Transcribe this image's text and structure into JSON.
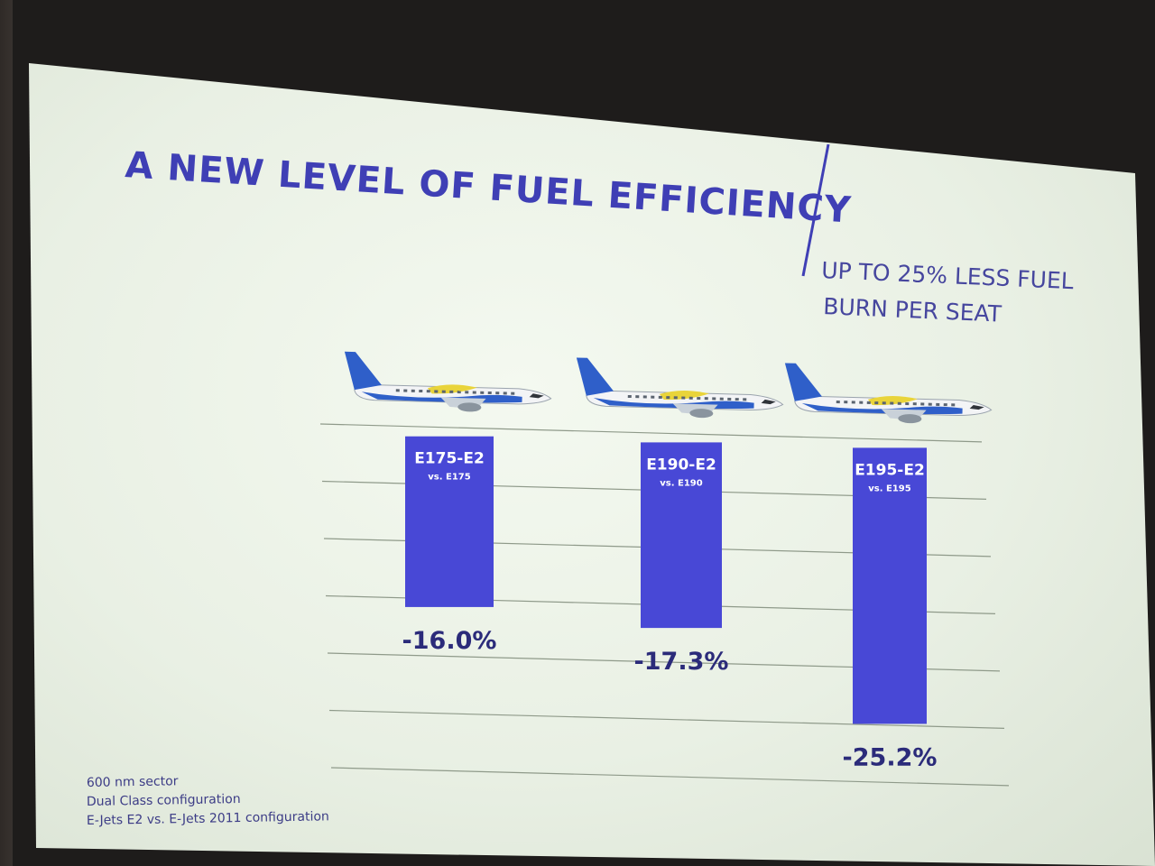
{
  "slide": {
    "title": "A NEW LEVEL OF FUEL EFFICIENCY",
    "subtitle_line1": "UP TO 25% LESS FUEL",
    "subtitle_line2": "BURN PER SEAT"
  },
  "footnotes": [
    "600 nm sector",
    "Dual Class configuration",
    "E-Jets E2 vs. E-Jets 2011 configuration"
  ],
  "chart_data": {
    "type": "bar",
    "title": "A NEW LEVEL OF FUEL EFFICIENCY",
    "categories": [
      "E175-E2",
      "E190-E2",
      "E195-E2"
    ],
    "comparisons": [
      "vs. E175",
      "vs. E190",
      "vs. E195"
    ],
    "values": [
      -16.0,
      -17.3,
      -25.2
    ],
    "value_labels": [
      "-16.0%",
      "-17.3%",
      "-25.2%"
    ],
    "unit": "%",
    "ylim": [
      -30,
      0
    ],
    "grid": true,
    "bar_color": "#4848d6",
    "xlabel": "",
    "ylabel": ""
  },
  "colors": {
    "title": "#3f3fb5",
    "bar": "#4848d6",
    "aircraft_livery": "#2f5fc9",
    "aircraft_accent": "#e9d43a"
  },
  "icons": [
    "aircraft-e175-e2-icon",
    "aircraft-e190-e2-icon",
    "aircraft-e195-e2-icon"
  ]
}
